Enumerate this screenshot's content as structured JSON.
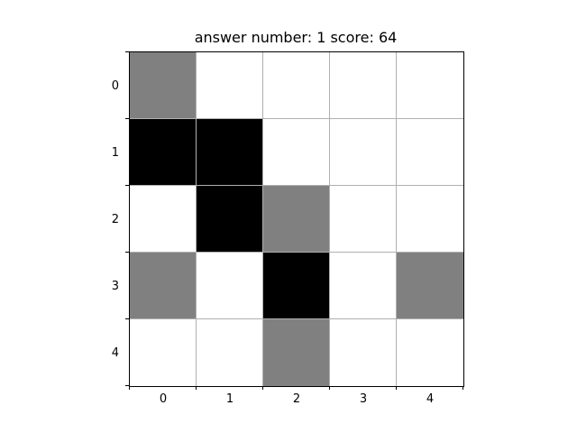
{
  "title": "answer number: 1  score: 64",
  "board": {
    "rows": 5,
    "cols": 5,
    "colors": {
      "empty": "#ffffff",
      "black": "#000000",
      "gray": "#808080",
      "grid": "#b0b0b0"
    },
    "cells": [
      [
        "gray",
        "empty",
        "empty",
        "empty",
        "empty"
      ],
      [
        "black",
        "black",
        "empty",
        "empty",
        "empty"
      ],
      [
        "empty",
        "black",
        "gray",
        "empty",
        "empty"
      ],
      [
        "gray",
        "empty",
        "black",
        "empty",
        "gray"
      ],
      [
        "empty",
        "empty",
        "gray",
        "empty",
        "empty"
      ]
    ]
  },
  "x_ticks": [
    "0",
    "1",
    "2",
    "3",
    "4"
  ],
  "y_ticks": [
    "0",
    "1",
    "2",
    "3",
    "4"
  ]
}
